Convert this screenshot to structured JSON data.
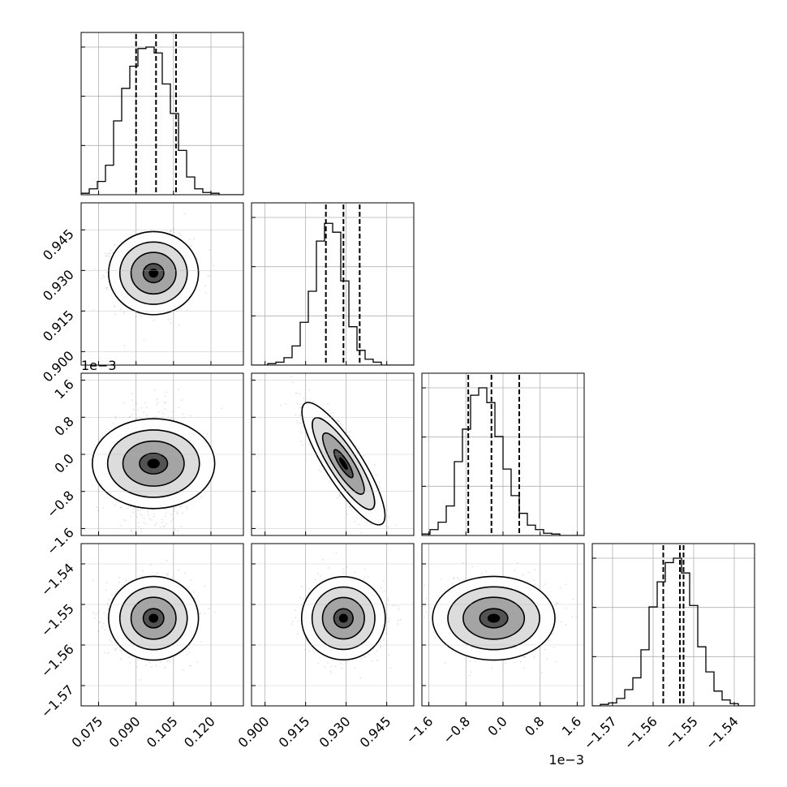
{
  "chart_data": {
    "type": "corner",
    "quantile_lines": "dashed",
    "grid": true,
    "parameters": [
      {
        "range": [
          0.068,
          0.133
        ],
        "ticks": [
          0.075,
          0.09,
          0.105,
          0.12
        ],
        "tick_labels": [
          "0.075",
          "0.090",
          "0.105",
          "0.120"
        ],
        "multiplier": "",
        "quantiles": [
          0.09,
          0.098,
          0.106
        ],
        "hist_fractions": [
          0.01,
          0.04,
          0.09,
          0.2,
          0.5,
          0.72,
          0.87,
          0.99,
          1.0,
          0.96,
          0.75,
          0.55,
          0.3,
          0.12,
          0.04,
          0.015,
          0.01,
          0.0,
          0.0,
          0.0
        ]
      },
      {
        "range": [
          0.895,
          0.955
        ],
        "ticks": [
          0.9,
          0.915,
          0.93,
          0.945
        ],
        "tick_labels": [
          "0.900",
          "0.915",
          "0.930",
          "0.945"
        ],
        "multiplier": "",
        "quantiles": [
          0.9225,
          0.929,
          0.935
        ],
        "hist_fractions": [
          0.0,
          0.0,
          0.01,
          0.02,
          0.05,
          0.13,
          0.29,
          0.5,
          0.84,
          0.96,
          0.9,
          0.57,
          0.26,
          0.1,
          0.04,
          0.02,
          0.0,
          0.0,
          0.0,
          0.0
        ]
      },
      {
        "range": [
          -1.75,
          1.75
        ],
        "ticks": [
          -1.6,
          -0.8,
          0.0,
          0.8,
          1.6
        ],
        "tick_labels": [
          "−1.6",
          "−0.8",
          "0.0",
          "0.8",
          "1.6"
        ],
        "multiplier": "1e−3",
        "quantiles": [
          -0.75,
          -0.25,
          0.35
        ],
        "hist_fractions": [
          0.01,
          0.04,
          0.09,
          0.2,
          0.5,
          0.72,
          0.95,
          1.0,
          0.9,
          0.67,
          0.45,
          0.27,
          0.15,
          0.07,
          0.04,
          0.015,
          0.01,
          0.0,
          0.0,
          0.0
        ]
      },
      {
        "range": [
          -1.575,
          -1.535
        ],
        "ticks": [
          -1.57,
          -1.56,
          -1.55,
          -1.54
        ],
        "tick_labels": [
          "−1.57",
          "−1.56",
          "−1.55",
          "−1.54"
        ],
        "multiplier": "",
        "quantiles": [
          -1.5575,
          -1.5534,
          -1.5525
        ],
        "hist_fractions": [
          0.0,
          0.01,
          0.02,
          0.05,
          0.11,
          0.19,
          0.38,
          0.67,
          0.84,
          0.97,
          1.0,
          0.9,
          0.68,
          0.4,
          0.23,
          0.1,
          0.04,
          0.015,
          0.0,
          0.0
        ]
      }
    ],
    "pairs": [
      {
        "row": 1,
        "col": 0,
        "center": [
          0.097,
          0.929
        ],
        "spread": [
          0.0075,
          0.0064
        ],
        "rho": 0.0
      },
      {
        "row": 2,
        "col": 0,
        "center": [
          0.097,
          -0.2
        ],
        "spread": [
          0.0075,
          0.55
        ],
        "rho": 0.0
      },
      {
        "row": 2,
        "col": 1,
        "center": [
          0.929,
          -0.2
        ],
        "spread": [
          0.0064,
          0.55
        ],
        "rho": -0.85
      },
      {
        "row": 3,
        "col": 0,
        "center": [
          0.097,
          -1.5534
        ],
        "spread": [
          0.0075,
          0.0043
        ],
        "rho": 0.0
      },
      {
        "row": 3,
        "col": 1,
        "center": [
          0.929,
          -1.5534
        ],
        "spread": [
          0.0064,
          0.0043
        ],
        "rho": 0.0
      },
      {
        "row": 3,
        "col": 2,
        "center": [
          -0.2,
          -1.5534
        ],
        "spread": [
          0.55,
          0.0043
        ],
        "rho": 0.0
      }
    ]
  }
}
